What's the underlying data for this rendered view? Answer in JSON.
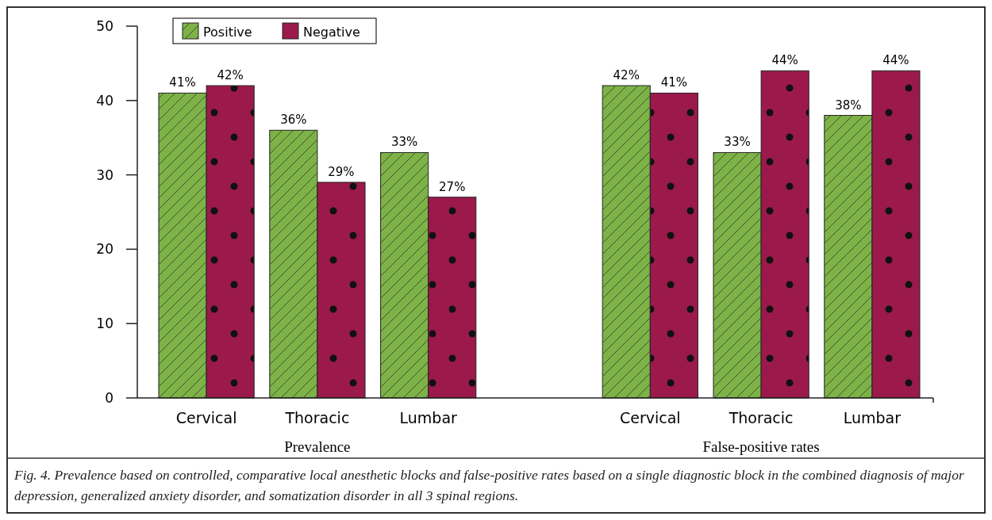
{
  "chart_data": {
    "type": "bar",
    "categories": [
      "Cervical",
      "Thoracic",
      "Lumbar",
      null,
      "Cervical",
      "Thoracic",
      "Lumbar"
    ],
    "series": [
      {
        "name": "Positive",
        "color": "#7db346",
        "values": [
          41,
          36,
          33,
          null,
          42,
          33,
          38
        ],
        "value_labels": [
          "41%",
          "36%",
          "33%",
          null,
          "42%",
          "33%",
          "38%"
        ]
      },
      {
        "name": "Negative",
        "color": "#9b1a4b",
        "values": [
          42,
          29,
          27,
          null,
          41,
          44,
          44
        ],
        "value_labels": [
          "42%",
          "29%",
          "27%",
          null,
          "41%",
          "44%",
          "44%"
        ]
      }
    ],
    "ylim": [
      0,
      50
    ],
    "yticks": [
      0,
      10,
      20,
      30,
      40,
      50
    ],
    "grid": false,
    "legend": "top left",
    "annotations": [
      "Prevalence",
      "False-positive rates",
      "Fig. 4. Prevalence based on controlled, comparative local anesthetic blocks and false-positive rates based on a single diagnostic block in the combined diagnosis of  major depression, generalized anxiety disorder, and somatization disorder in all 3 spinal regions."
    ]
  }
}
